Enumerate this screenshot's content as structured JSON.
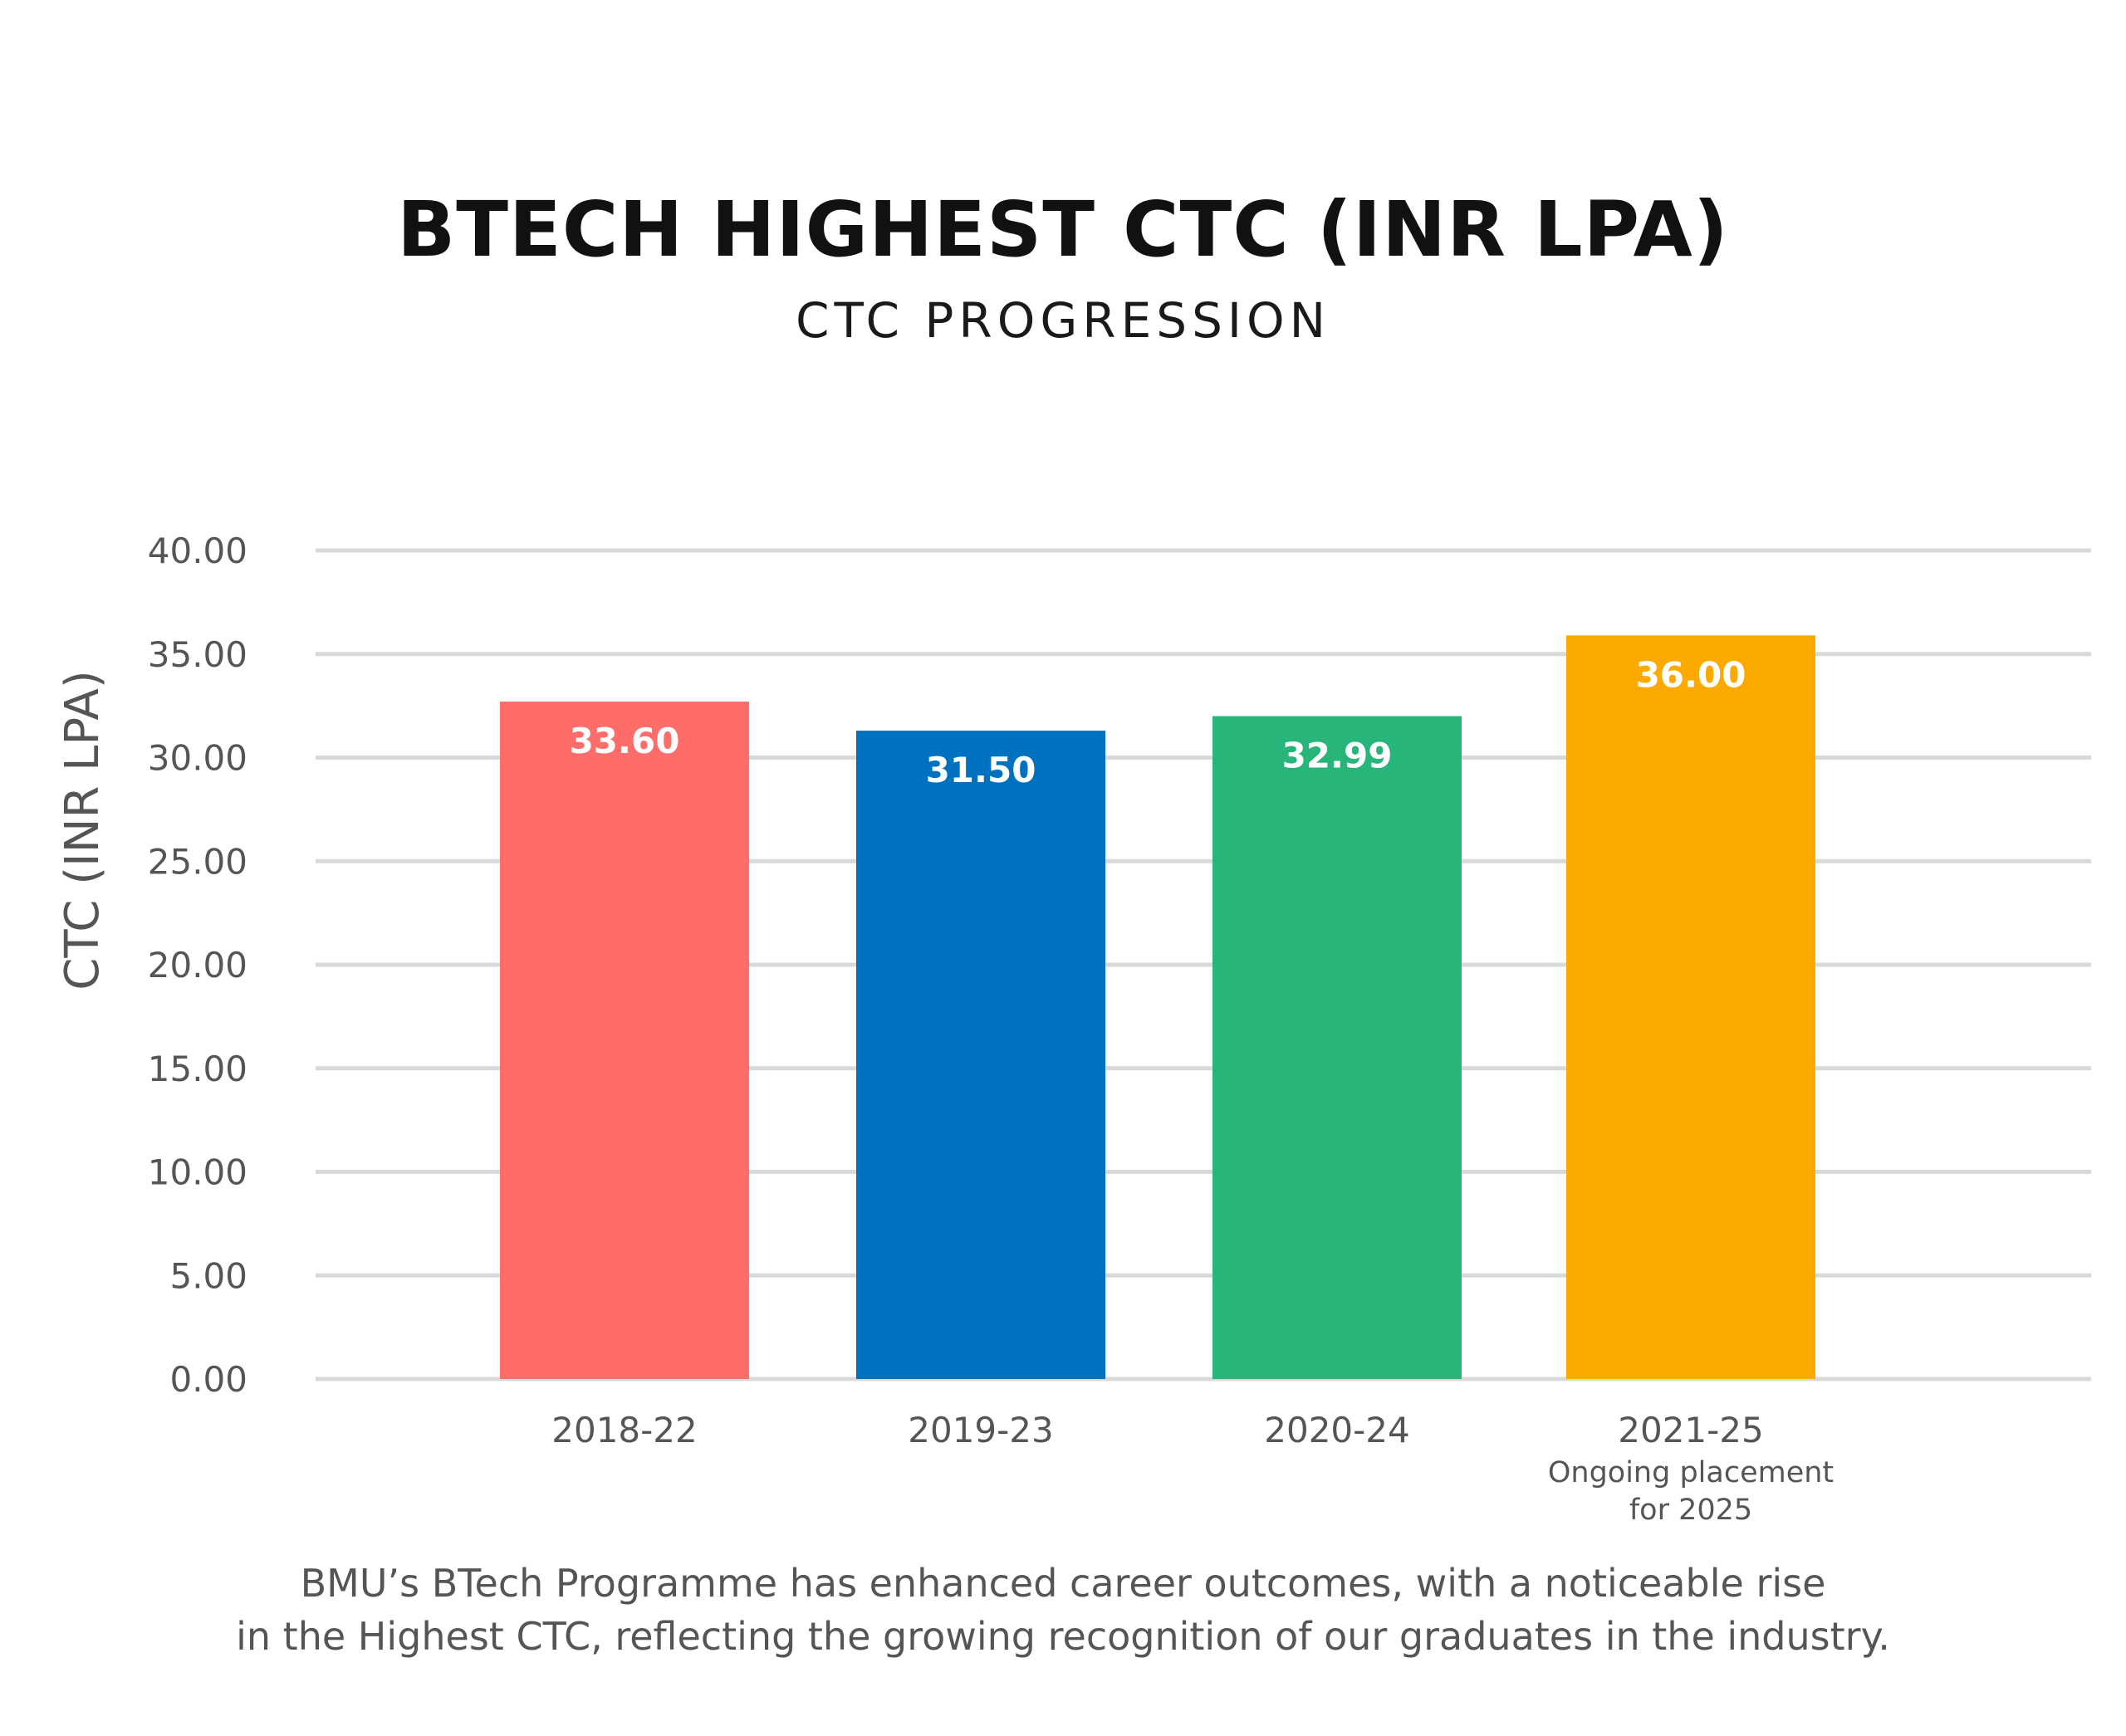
{
  "header": {
    "title": "BTECH HIGHEST CTC (INR LPA)",
    "subtitle": "CTC PROGRESSION"
  },
  "caption": {
    "line1": "BMU’s BTech Programme has enhanced career outcomes, with a noticeable rise",
    "line2": "in the Highest CTC, reflecting the growing recognition of our graduates in the industry."
  },
  "chart_data": {
    "type": "bar",
    "title": "BTECH HIGHEST CTC (INR LPA)",
    "subtitle": "CTC PROGRESSION",
    "xlabel": "",
    "ylabel": "CTC (INR LPA)",
    "ylim": [
      0,
      40
    ],
    "yticks": [
      "0.00",
      "5.00",
      "10.00",
      "15.00",
      "20.00",
      "25.00",
      "30.00",
      "35.00",
      "40.00"
    ],
    "grid": true,
    "legend": "none",
    "categories": [
      "2018-22",
      "2019-23",
      "2020-24",
      "2021-25"
    ],
    "category_notes": [
      "",
      "",
      "",
      "Ongoing placement\nfor 2025"
    ],
    "values": [
      33.6,
      31.5,
      32.99,
      36.0
    ],
    "data_labels": [
      "33.60",
      "31.50",
      "32.99",
      "36.00"
    ],
    "colors": [
      "#FF6D6A",
      "#0071BF",
      "#27B57A",
      "#FCAA00"
    ],
    "colors_note": "bar fill colors as drawn (bar heights are slightly shorter than labeled values)",
    "bar_heights_shown": [
      32.7,
      31.3,
      32.0,
      35.9
    ],
    "gridline_color": "#D9D9D9",
    "label_color": "#FFFFFF"
  }
}
